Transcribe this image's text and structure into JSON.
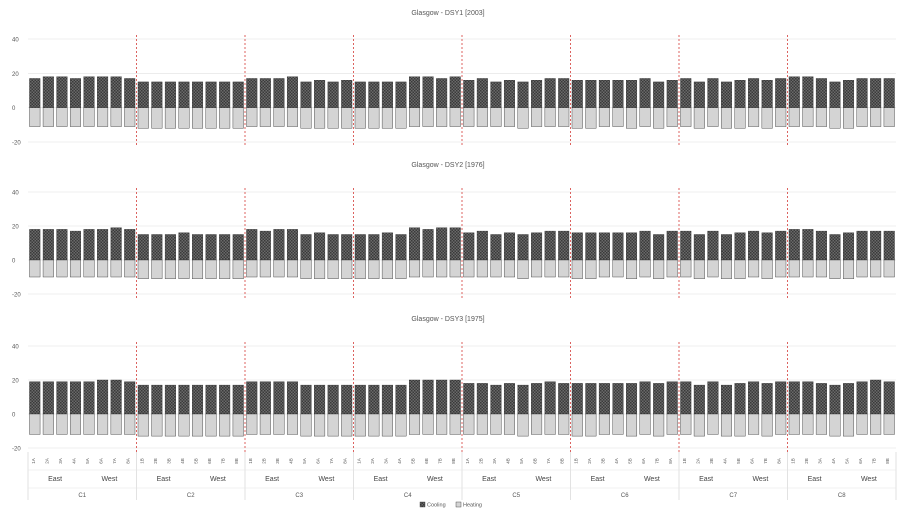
{
  "chart_data": [
    {
      "type": "bar",
      "title": "Glasgow - DSY1 [2003]",
      "ylim": [
        -20,
        40
      ],
      "yticks": [
        "-20",
        "0",
        "20",
        "40"
      ],
      "series": [
        {
          "name": "Cooling",
          "values": [
            17,
            18,
            18,
            17,
            18,
            18,
            18,
            17,
            15,
            15,
            15,
            15,
            15,
            15,
            15,
            15,
            17,
            17,
            17,
            18,
            15,
            16,
            15,
            16,
            15,
            15,
            15,
            15,
            18,
            18,
            17,
            18,
            16,
            17,
            15,
            16,
            15,
            16,
            17,
            17,
            16,
            16,
            16,
            16,
            16,
            17,
            15,
            16,
            17,
            15,
            17,
            15,
            16,
            17,
            16,
            17,
            18,
            18,
            17,
            15,
            16,
            17,
            17,
            17
          ]
        },
        {
          "name": "Heating",
          "values": [
            -11,
            -11,
            -11,
            -11,
            -11,
            -11,
            -11,
            -11,
            -12,
            -12,
            -12,
            -12,
            -12,
            -12,
            -12,
            -12,
            -11,
            -11,
            -11,
            -11,
            -12,
            -12,
            -12,
            -12,
            -12,
            -12,
            -12,
            -12,
            -11,
            -11,
            -11,
            -11,
            -11,
            -11,
            -11,
            -11,
            -12,
            -11,
            -11,
            -11,
            -12,
            -12,
            -11,
            -11,
            -12,
            -11,
            -12,
            -11,
            -11,
            -12,
            -11,
            -12,
            -12,
            -11,
            -12,
            -11,
            -11,
            -11,
            -11,
            -12,
            -12,
            -11,
            -11,
            -11
          ]
        }
      ]
    },
    {
      "type": "bar",
      "title": "Glasgow - DSY2 [1976]",
      "ylim": [
        -20,
        40
      ],
      "yticks": [
        "-20",
        "0",
        "20",
        "40"
      ],
      "series": [
        {
          "name": "Cooling",
          "values": [
            18,
            18,
            18,
            17,
            18,
            18,
            19,
            18,
            15,
            15,
            15,
            16,
            15,
            15,
            15,
            15,
            18,
            17,
            18,
            18,
            15,
            16,
            15,
            15,
            15,
            15,
            16,
            15,
            19,
            18,
            19,
            19,
            16,
            17,
            15,
            16,
            15,
            16,
            17,
            17,
            16,
            16,
            16,
            16,
            16,
            17,
            15,
            17,
            17,
            15,
            17,
            15,
            16,
            17,
            16,
            17,
            18,
            18,
            17,
            15,
            16,
            17,
            17,
            17
          ]
        },
        {
          "name": "Heating",
          "values": [
            -10,
            -10,
            -10,
            -10,
            -10,
            -10,
            -10,
            -10,
            -11,
            -11,
            -11,
            -11,
            -11,
            -11,
            -11,
            -11,
            -10,
            -10,
            -10,
            -10,
            -11,
            -11,
            -11,
            -11,
            -11,
            -11,
            -11,
            -11,
            -10,
            -10,
            -10,
            -10,
            -10,
            -10,
            -10,
            -10,
            -11,
            -10,
            -10,
            -10,
            -11,
            -11,
            -10,
            -10,
            -11,
            -10,
            -11,
            -10,
            -10,
            -11,
            -10,
            -11,
            -11,
            -10,
            -11,
            -10,
            -10,
            -10,
            -10,
            -11,
            -11,
            -10,
            -10,
            -10
          ]
        }
      ]
    },
    {
      "type": "bar",
      "title": "Glasgow - DSY3 [1975]",
      "ylim": [
        -20,
        40
      ],
      "yticks": [
        "-20",
        "0",
        "20",
        "40"
      ],
      "series": [
        {
          "name": "Cooling",
          "values": [
            19,
            19,
            19,
            19,
            19,
            20,
            20,
            19,
            17,
            17,
            17,
            17,
            17,
            17,
            17,
            17,
            19,
            19,
            19,
            19,
            17,
            17,
            17,
            17,
            17,
            17,
            17,
            17,
            20,
            20,
            20,
            20,
            18,
            18,
            17,
            18,
            17,
            18,
            19,
            18,
            18,
            18,
            18,
            18,
            18,
            19,
            18,
            19,
            19,
            17,
            19,
            17,
            18,
            19,
            18,
            19,
            19,
            19,
            18,
            17,
            18,
            19,
            20,
            19
          ]
        },
        {
          "name": "Heating",
          "values": [
            -12,
            -12,
            -12,
            -12,
            -12,
            -12,
            -12,
            -12,
            -13,
            -13,
            -13,
            -13,
            -13,
            -13,
            -13,
            -13,
            -12,
            -12,
            -12,
            -12,
            -13,
            -13,
            -13,
            -13,
            -13,
            -13,
            -13,
            -13,
            -12,
            -12,
            -12,
            -12,
            -12,
            -12,
            -12,
            -12,
            -13,
            -12,
            -12,
            -12,
            -13,
            -13,
            -12,
            -12,
            -13,
            -12,
            -13,
            -12,
            -12,
            -13,
            -12,
            -13,
            -13,
            -12,
            -13,
            -12,
            -12,
            -12,
            -12,
            -13,
            -13,
            -12,
            -12,
            -12
          ]
        }
      ]
    }
  ],
  "categories": [
    "1A",
    "2A",
    "3A",
    "4A",
    "5A",
    "6A",
    "7A",
    "8A",
    "1B",
    "2B",
    "3B",
    "4B",
    "5B",
    "6B",
    "7B",
    "8B",
    "1B",
    "2B",
    "3B",
    "4B",
    "5A",
    "6A",
    "7A",
    "8A",
    "1A",
    "2A",
    "3A",
    "4A",
    "5B",
    "6B",
    "7B",
    "8B",
    "1A",
    "2B",
    "3A",
    "4B",
    "5A",
    "6B",
    "7A",
    "8B",
    "1B",
    "2A",
    "3B",
    "4A",
    "5B",
    "6A",
    "7B",
    "8A",
    "1B",
    "2A",
    "3B",
    "4A",
    "5B",
    "6A",
    "7B",
    "8A",
    "1B",
    "2B",
    "3A",
    "4A",
    "5A",
    "6A",
    "7B",
    "8B"
  ],
  "groups": [
    {
      "name": "C1",
      "subgroups": [
        "East",
        "West"
      ]
    },
    {
      "name": "C2",
      "subgroups": [
        "East",
        "West"
      ]
    },
    {
      "name": "C3",
      "subgroups": [
        "East",
        "West"
      ]
    },
    {
      "name": "C4",
      "subgroups": [
        "East",
        "West"
      ]
    },
    {
      "name": "C5",
      "subgroups": [
        "East",
        "West"
      ]
    },
    {
      "name": "C6",
      "subgroups": [
        "East",
        "West"
      ]
    },
    {
      "name": "C7",
      "subgroups": [
        "East",
        "West"
      ]
    },
    {
      "name": "C8",
      "subgroups": [
        "East",
        "West"
      ]
    }
  ],
  "legend": {
    "position": "bottom-center",
    "items": [
      {
        "name": "Cooling",
        "color": "#4a4a4a"
      },
      {
        "name": "Heating",
        "color": "#d4d4d4"
      }
    ]
  },
  "colors": {
    "cooling": "#5a5a5a",
    "heating": "#d4d4d4",
    "divider": "#d9534f",
    "grid": "#e0e0e0"
  }
}
